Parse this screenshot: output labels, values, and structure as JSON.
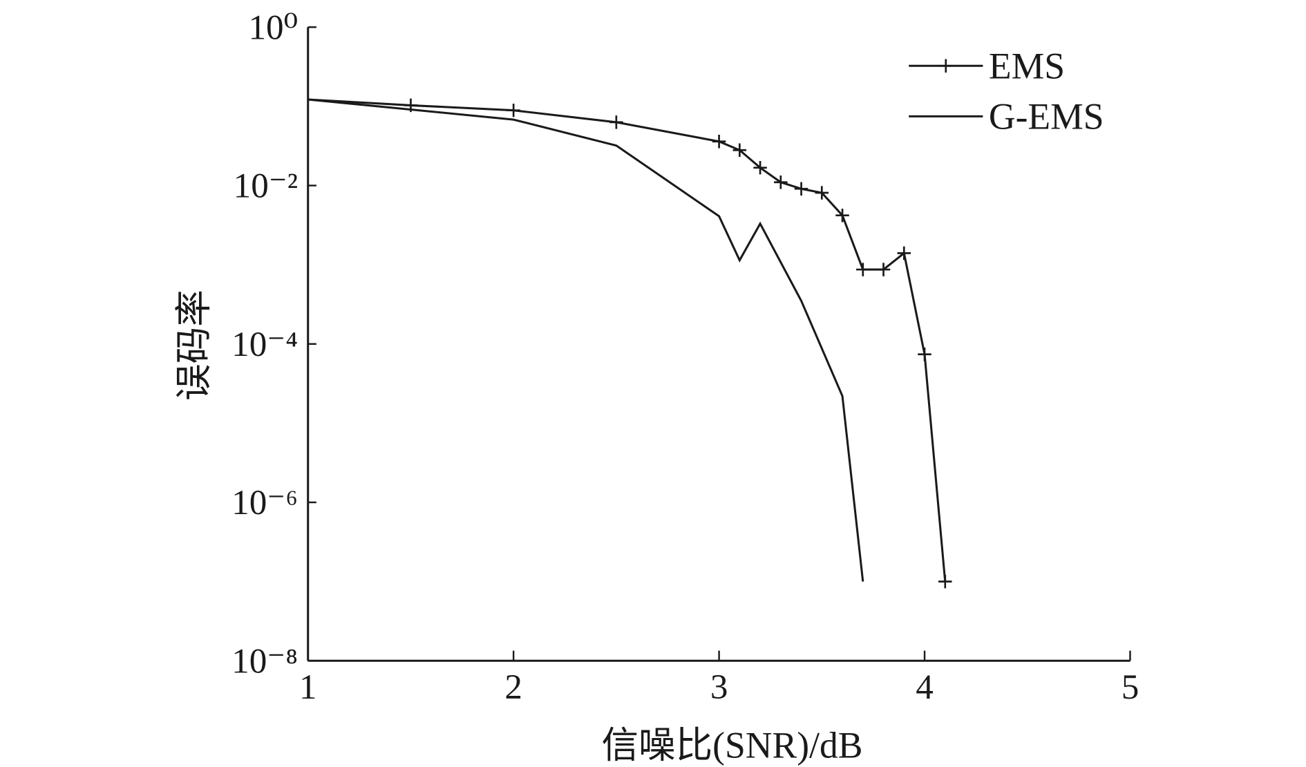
{
  "chart_data": {
    "type": "line",
    "x_label": "信噪比(SNR)/dB",
    "y_label": "误码率",
    "log_y": true,
    "xlim": [
      1,
      5
    ],
    "xticks": [
      1,
      2,
      3,
      4,
      5
    ],
    "ylim": [
      1e-08,
      1
    ],
    "yticks": [
      {
        "value": 1,
        "label": "10⁰"
      },
      {
        "value": 0.01,
        "label": "10⁻²"
      },
      {
        "value": 0.0001,
        "label": "10⁻⁴"
      },
      {
        "value": 1e-06,
        "label": "10⁻⁶"
      },
      {
        "value": 1e-08,
        "label": "10⁻⁸"
      }
    ],
    "legend": "top-right",
    "series": [
      {
        "name": "EMS",
        "color": "#1a1a1a",
        "marker": "+",
        "x": [
          1.0,
          1.5,
          2.0,
          2.5,
          3.0,
          3.1,
          3.2,
          3.3,
          3.4,
          3.5,
          3.6,
          3.7,
          3.8,
          3.9,
          4.0,
          4.1
        ],
        "values": [
          0.122,
          0.103,
          0.089,
          0.063,
          0.036,
          0.028,
          0.0168,
          0.011,
          0.0091,
          0.0081,
          0.0042,
          0.00087,
          0.00087,
          0.0014,
          7.4e-05,
          1e-07
        ],
        "marker_from": 1
      },
      {
        "name": "G-EMS",
        "color": "#1a1a1a",
        "x": [
          1.0,
          2.0,
          2.5,
          3.0,
          3.1,
          3.2,
          3.4,
          3.6,
          3.7
        ],
        "values": [
          0.122,
          0.068,
          0.032,
          0.0041,
          0.00114,
          0.0033,
          0.00035,
          2.2e-05,
          1e-07
        ]
      }
    ]
  }
}
